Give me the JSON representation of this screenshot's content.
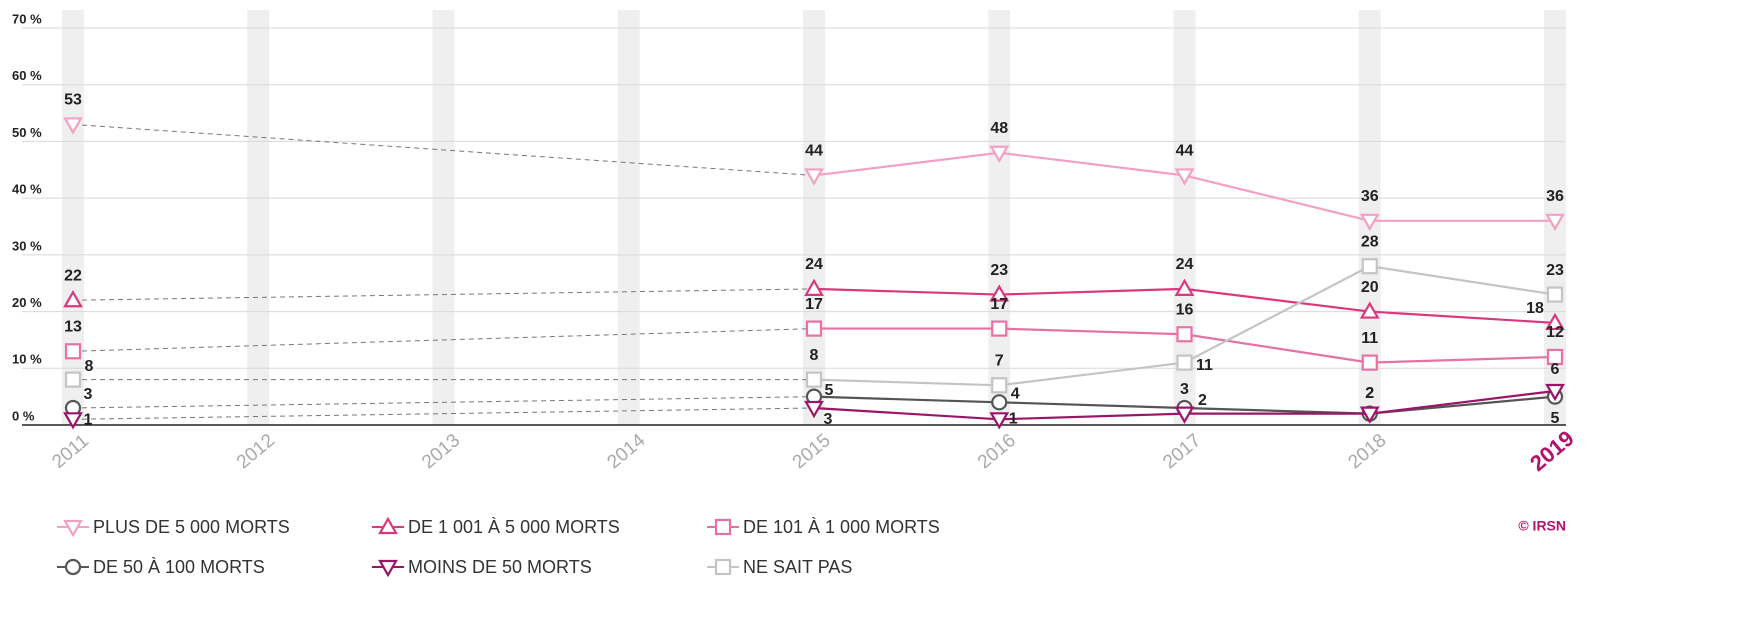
{
  "chart_data": {
    "type": "line",
    "categories": [
      "2011",
      "2012",
      "2013",
      "2014",
      "2015",
      "2016",
      "2017",
      "2018",
      "2019"
    ],
    "series": [
      {
        "name": "PLUS DE 5 000 MORTS",
        "color": "#f2a0c4",
        "marker": "triangle-down",
        "values": [
          53,
          null,
          null,
          null,
          44,
          48,
          44,
          36,
          36
        ]
      },
      {
        "name": "DE 1 001 À 5 000 MORTS",
        "color": "#d9387f",
        "marker": "triangle-up",
        "values": [
          22,
          null,
          null,
          null,
          24,
          23,
          24,
          20,
          18
        ]
      },
      {
        "name": "DE 101 À 1 000 MORTS",
        "color": "#e672a5",
        "marker": "square",
        "values": [
          13,
          null,
          null,
          null,
          17,
          17,
          16,
          11,
          12
        ]
      },
      {
        "name": "DE 50 À 100 MORTS",
        "color": "#555555",
        "marker": "circle",
        "values": [
          3,
          null,
          null,
          null,
          5,
          4,
          3,
          2,
          5
        ]
      },
      {
        "name": "MOINS DE 50 MORTS",
        "color": "#9c1468",
        "marker": "triangle-down",
        "values": [
          1,
          null,
          null,
          null,
          3,
          1,
          2,
          2,
          6
        ]
      },
      {
        "name": "NE SAIT PAS",
        "color": "#c4c4c4",
        "marker": "square",
        "values": [
          8,
          null,
          null,
          null,
          8,
          7,
          11,
          28,
          23
        ]
      }
    ],
    "ylim": [
      0,
      70
    ],
    "yticks": [
      {
        "value": 0,
        "label": "0 %"
      },
      {
        "value": 10,
        "label": "10 %"
      },
      {
        "value": 20,
        "label": "20 %"
      },
      {
        "value": 30,
        "label": "30 %"
      },
      {
        "value": 40,
        "label": "40 %"
      },
      {
        "value": 50,
        "label": "50 %"
      },
      {
        "value": 60,
        "label": "60 %"
      },
      {
        "value": 70,
        "label": "70 %"
      }
    ],
    "grid": true,
    "source": "© IRSN"
  }
}
